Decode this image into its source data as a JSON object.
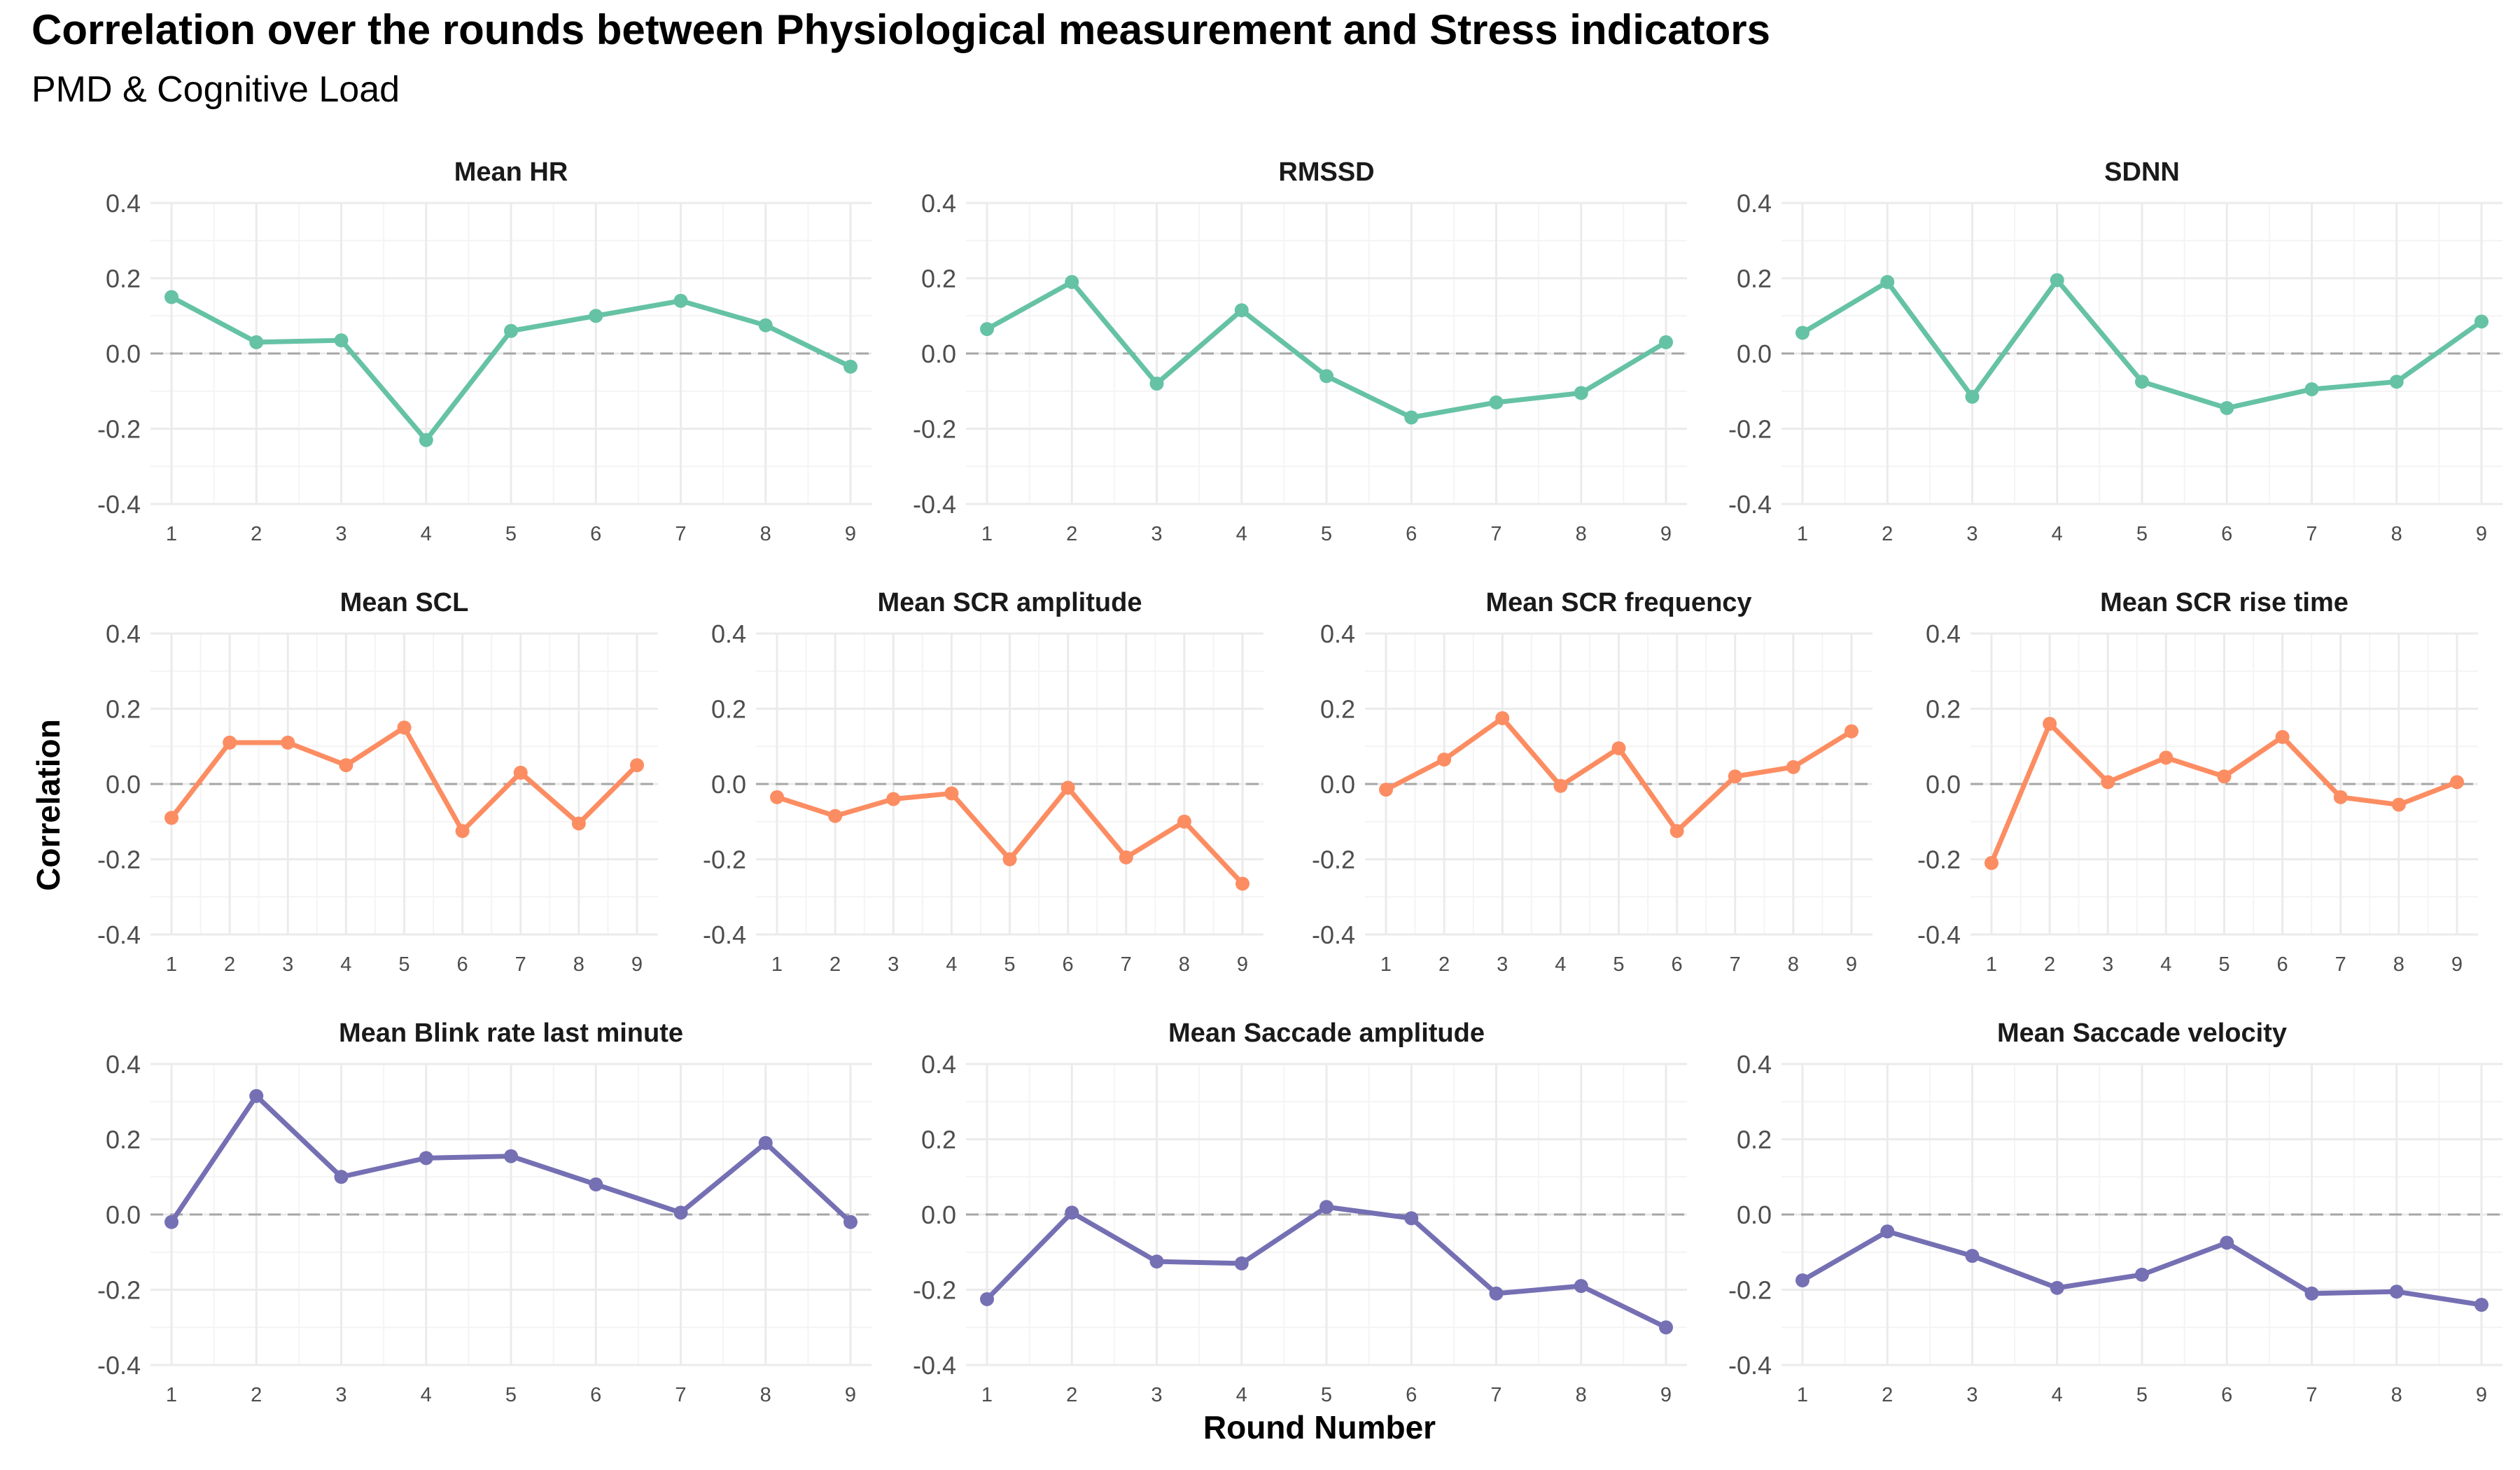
{
  "title": "Correlation over the rounds between Physiological measurement and Stress indicators",
  "subtitle": "PMD & Cognitive Load",
  "xlabel": "Round Number",
  "ylabel": "Correlation",
  "colors": {
    "cardio": "#66c2a5",
    "eda": "#fc8d62",
    "eye": "#7570b3",
    "zero_line": "#a6a6a6",
    "grid_major": "#ebebeb",
    "grid_minor": "#f4f4f4"
  },
  "chart_data": {
    "type": "line",
    "layout": "faceted",
    "x": [
      1,
      2,
      3,
      4,
      5,
      6,
      7,
      8,
      9
    ],
    "ylim": [
      -0.4,
      0.4
    ],
    "yticks": [
      -0.4,
      -0.2,
      0.0,
      0.2,
      0.4
    ],
    "ytick_labels": [
      "-0.4",
      "-0.2",
      "0.0",
      "0.2",
      "0.4"
    ],
    "reference_line": 0,
    "grid": true,
    "panels": [
      {
        "title": "Mean HR",
        "group": "cardio",
        "values": [
          0.15,
          0.03,
          0.035,
          -0.23,
          0.06,
          0.1,
          0.14,
          0.075,
          -0.035
        ]
      },
      {
        "title": "RMSSD",
        "group": "cardio",
        "values": [
          0.065,
          0.19,
          -0.08,
          0.115,
          -0.06,
          -0.17,
          -0.13,
          -0.105,
          0.03
        ]
      },
      {
        "title": "SDNN",
        "group": "cardio",
        "values": [
          0.055,
          0.19,
          -0.115,
          0.195,
          -0.075,
          -0.145,
          -0.095,
          -0.075,
          0.085
        ]
      },
      {
        "title": "Mean SCL",
        "group": "eda",
        "values": [
          -0.09,
          0.11,
          0.11,
          0.05,
          0.15,
          -0.125,
          0.03,
          -0.105,
          0.05
        ]
      },
      {
        "title": "Mean SCR amplitude",
        "group": "eda",
        "values": [
          -0.035,
          -0.085,
          -0.04,
          -0.025,
          -0.2,
          -0.01,
          -0.195,
          -0.1,
          -0.265
        ]
      },
      {
        "title": "Mean SCR frequency",
        "group": "eda",
        "values": [
          -0.015,
          0.065,
          0.175,
          -0.005,
          0.095,
          -0.125,
          0.02,
          0.045,
          0.14
        ]
      },
      {
        "title": "Mean SCR rise time",
        "group": "eda",
        "values": [
          -0.21,
          0.16,
          0.005,
          0.07,
          0.02,
          0.125,
          -0.035,
          -0.055,
          0.005
        ]
      },
      {
        "title": "Mean Blink rate last minute",
        "group": "eye",
        "values": [
          -0.02,
          0.315,
          0.1,
          0.15,
          0.155,
          0.08,
          0.005,
          0.19,
          -0.02
        ]
      },
      {
        "title": "Mean Saccade amplitude",
        "group": "eye",
        "values": [
          -0.225,
          0.005,
          -0.125,
          -0.13,
          0.02,
          -0.01,
          -0.21,
          -0.19,
          -0.3
        ]
      },
      {
        "title": "Mean Saccade velocity",
        "group": "eye",
        "values": [
          -0.175,
          -0.045,
          -0.11,
          -0.195,
          -0.16,
          -0.075,
          -0.21,
          -0.205,
          -0.24
        ]
      }
    ]
  }
}
